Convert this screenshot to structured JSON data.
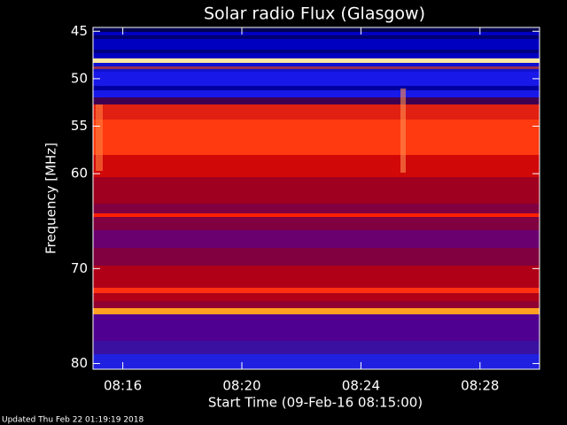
{
  "chart_data": {
    "type": "spectrogram",
    "title": "Solar radio Flux (Glasgow)",
    "ylabel": "Frequency [MHz]",
    "xlabel": "Start Time (09-Feb-16 08:15:00)",
    "footer": "Updated Thu Feb 22 01:19:19 2018",
    "xlim": [
      0,
      15
    ],
    "xticks": [
      {
        "value": 1,
        "label": "08:16"
      },
      {
        "value": 5,
        "label": "08:20"
      },
      {
        "value": 9,
        "label": "08:24"
      },
      {
        "value": 13,
        "label": "08:28"
      }
    ],
    "ylim": [
      44.6,
      80.6
    ],
    "yticks": [
      45,
      50,
      55,
      60,
      70,
      80
    ],
    "y_inverted": true
  }
}
